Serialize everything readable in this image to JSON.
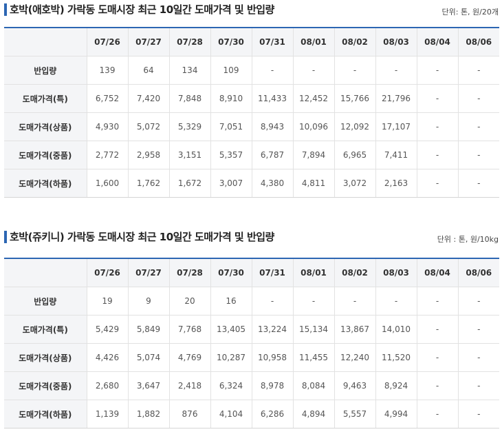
{
  "sections": [
    {
      "title": "호박(애호박) 가락동 도매시장 최근 10일간 도매가격 및 반입량",
      "unit": "단위: 톤, 원/20개",
      "columns": [
        "07/26",
        "07/27",
        "07/28",
        "07/30",
        "07/31",
        "08/01",
        "08/02",
        "08/03",
        "08/04",
        "08/06"
      ],
      "rows": [
        {
          "label": "반입량",
          "values": [
            "139",
            "64",
            "134",
            "109",
            "-",
            "-",
            "-",
            "-",
            "-",
            "-"
          ]
        },
        {
          "label": "도매가격(특)",
          "values": [
            "6,752",
            "7,420",
            "7,848",
            "8,910",
            "11,433",
            "12,452",
            "15,766",
            "21,796",
            "-",
            "-"
          ]
        },
        {
          "label": "도매가격(상품)",
          "values": [
            "4,930",
            "5,072",
            "5,329",
            "7,051",
            "8,943",
            "10,096",
            "12,092",
            "17,107",
            "-",
            "-"
          ]
        },
        {
          "label": "도매가격(중품)",
          "values": [
            "2,772",
            "2,958",
            "3,151",
            "5,357",
            "6,787",
            "7,894",
            "6,965",
            "7,411",
            "-",
            "-"
          ]
        },
        {
          "label": "도매가격(하품)",
          "values": [
            "1,600",
            "1,762",
            "1,672",
            "3,007",
            "4,380",
            "4,811",
            "3,072",
            "2,163",
            "-",
            "-"
          ]
        }
      ]
    },
    {
      "title": "호박(쥬키니) 가락동 도매시장 최근 10일간 도매가격 및 반입량",
      "unit": "단위 : 톤, 원/10kg",
      "columns": [
        "07/26",
        "07/27",
        "07/28",
        "07/30",
        "07/31",
        "08/01",
        "08/02",
        "08/03",
        "08/04",
        "08/06"
      ],
      "rows": [
        {
          "label": "반입량",
          "values": [
            "19",
            "9",
            "20",
            "16",
            "-",
            "-",
            "-",
            "-",
            "-",
            "-"
          ]
        },
        {
          "label": "도매가격(특)",
          "values": [
            "5,429",
            "5,849",
            "7,768",
            "13,405",
            "13,224",
            "15,134",
            "13,867",
            "14,010",
            "-",
            "-"
          ]
        },
        {
          "label": "도매가격(상품)",
          "values": [
            "4,426",
            "5,074",
            "4,769",
            "10,287",
            "10,958",
            "11,455",
            "12,240",
            "11,520",
            "-",
            "-"
          ]
        },
        {
          "label": "도매가격(중품)",
          "values": [
            "2,680",
            "3,647",
            "2,418",
            "6,324",
            "8,978",
            "8,084",
            "9,463",
            "8,924",
            "-",
            "-"
          ]
        },
        {
          "label": "도매가격(하품)",
          "values": [
            "1,139",
            "1,882",
            "876",
            "4,104",
            "6,286",
            "4,894",
            "5,557",
            "4,994",
            "-",
            "-"
          ]
        }
      ]
    }
  ],
  "colors": {
    "accent": "#2c66b3",
    "header_bg": "#f4f5f7",
    "border": "#e2e2e2"
  }
}
